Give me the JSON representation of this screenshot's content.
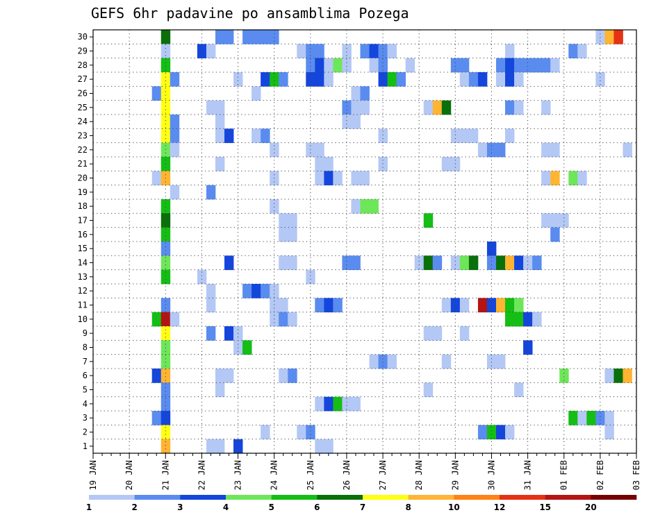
{
  "chart_data": {
    "type": "heatmap",
    "title": "GEFS 6hr padavine po ansamblima Pozega",
    "xlabel": "",
    "ylabel": "",
    "x_start": "19 JAN 00Z",
    "step_hours": 6,
    "x_ticks": [
      "19 JAN",
      "20 JAN",
      "21 JAN",
      "22 JAN",
      "23 JAN",
      "24 JAN",
      "25 JAN",
      "26 JAN",
      "27 JAN",
      "28 JAN",
      "29 JAN",
      "30 JAN",
      "31 JAN",
      "01 FEB",
      "02 FEB",
      "03 FEB"
    ],
    "y_ticks": [
      1,
      2,
      3,
      4,
      5,
      6,
      7,
      8,
      9,
      10,
      11,
      12,
      13,
      14,
      15,
      16,
      17,
      18,
      19,
      20,
      21,
      22,
      23,
      24,
      25,
      26,
      27,
      28,
      29,
      30
    ],
    "ylim": [
      0,
      30
    ],
    "grid": true,
    "colorbar": {
      "labels": [
        "1",
        "2",
        "3",
        "4",
        "5",
        "6",
        "7",
        "8",
        "10",
        "12",
        "15",
        "20"
      ],
      "colors": [
        "#b4c8f5",
        "#5a8cf0",
        "#1446dc",
        "#6ee65a",
        "#14be14",
        "#0a700a",
        "#ffff14",
        "#ffb432",
        "#ff8214",
        "#e63214",
        "#b41414",
        "#780000"
      ]
    },
    "cells": [
      {
        "m": 30,
        "c": [
          [
            8,
            6
          ],
          [
            14,
            2
          ],
          [
            15,
            2
          ],
          [
            17,
            2
          ],
          [
            18,
            2
          ],
          [
            19,
            2
          ],
          [
            20,
            2
          ],
          [
            56,
            1
          ],
          [
            57,
            8
          ],
          [
            58,
            10
          ]
        ]
      },
      {
        "m": 29,
        "c": [
          [
            8,
            1
          ],
          [
            12,
            3
          ],
          [
            13,
            1
          ],
          [
            23,
            1
          ],
          [
            24,
            2
          ],
          [
            25,
            2
          ],
          [
            28,
            1
          ],
          [
            30,
            2
          ],
          [
            31,
            3
          ],
          [
            32,
            2
          ],
          [
            33,
            1
          ],
          [
            46,
            1
          ],
          [
            53,
            2
          ],
          [
            54,
            1
          ]
        ]
      },
      {
        "m": 28,
        "c": [
          [
            8,
            5
          ],
          [
            24,
            2
          ],
          [
            25,
            3
          ],
          [
            26,
            1
          ],
          [
            27,
            4
          ],
          [
            28,
            1
          ],
          [
            31,
            1
          ],
          [
            32,
            2
          ],
          [
            35,
            1
          ],
          [
            40,
            2
          ],
          [
            41,
            2
          ],
          [
            45,
            2
          ],
          [
            46,
            3
          ],
          [
            47,
            2
          ],
          [
            48,
            2
          ],
          [
            49,
            2
          ],
          [
            50,
            2
          ],
          [
            51,
            1
          ]
        ]
      },
      {
        "m": 27,
        "c": [
          [
            8,
            7
          ],
          [
            9,
            2
          ],
          [
            16,
            1
          ],
          [
            19,
            3
          ],
          [
            20,
            5
          ],
          [
            21,
            2
          ],
          [
            24,
            3
          ],
          [
            25,
            3
          ],
          [
            26,
            1
          ],
          [
            32,
            3
          ],
          [
            33,
            5
          ],
          [
            34,
            2
          ],
          [
            41,
            1
          ],
          [
            42,
            2
          ],
          [
            43,
            3
          ],
          [
            45,
            1
          ],
          [
            46,
            3
          ],
          [
            47,
            1
          ],
          [
            56,
            1
          ]
        ]
      },
      {
        "m": 26,
        "c": [
          [
            7,
            2
          ],
          [
            8,
            7
          ],
          [
            18,
            1
          ],
          [
            29,
            1
          ],
          [
            30,
            2
          ]
        ]
      },
      {
        "m": 25,
        "c": [
          [
            8,
            7
          ],
          [
            13,
            1
          ],
          [
            14,
            1
          ],
          [
            28,
            2
          ],
          [
            29,
            1
          ],
          [
            30,
            1
          ],
          [
            37,
            1
          ],
          [
            38,
            8
          ],
          [
            39,
            6
          ],
          [
            46,
            2
          ],
          [
            47,
            1
          ],
          [
            50,
            1
          ]
        ]
      },
      {
        "m": 24,
        "c": [
          [
            8,
            7
          ],
          [
            9,
            2
          ],
          [
            14,
            1
          ],
          [
            28,
            1
          ],
          [
            29,
            1
          ]
        ]
      },
      {
        "m": 23,
        "c": [
          [
            8,
            7
          ],
          [
            9,
            2
          ],
          [
            14,
            1
          ],
          [
            15,
            3
          ],
          [
            18,
            1
          ],
          [
            19,
            2
          ],
          [
            32,
            1
          ],
          [
            40,
            1
          ],
          [
            41,
            1
          ],
          [
            42,
            1
          ],
          [
            46,
            1
          ]
        ]
      },
      {
        "m": 22,
        "c": [
          [
            8,
            4
          ],
          [
            9,
            1
          ],
          [
            20,
            1
          ],
          [
            24,
            1
          ],
          [
            25,
            1
          ],
          [
            43,
            1
          ],
          [
            44,
            2
          ],
          [
            45,
            2
          ],
          [
            50,
            1
          ],
          [
            51,
            1
          ],
          [
            59,
            1
          ]
        ]
      },
      {
        "m": 21,
        "c": [
          [
            8,
            5
          ],
          [
            14,
            1
          ],
          [
            25,
            1
          ],
          [
            26,
            1
          ],
          [
            32,
            1
          ],
          [
            39,
            1
          ],
          [
            40,
            1
          ]
        ]
      },
      {
        "m": 20,
        "c": [
          [
            7,
            1
          ],
          [
            8,
            8
          ],
          [
            20,
            1
          ],
          [
            25,
            1
          ],
          [
            26,
            3
          ],
          [
            27,
            1
          ],
          [
            29,
            1
          ],
          [
            30,
            1
          ],
          [
            50,
            1
          ],
          [
            51,
            8
          ],
          [
            53,
            4
          ],
          [
            54,
            1
          ]
        ]
      },
      {
        "m": 19,
        "c": [
          [
            9,
            1
          ],
          [
            13,
            2
          ]
        ]
      },
      {
        "m": 18,
        "c": [
          [
            8,
            5
          ],
          [
            20,
            1
          ],
          [
            29,
            1
          ],
          [
            30,
            4
          ],
          [
            31,
            4
          ]
        ]
      },
      {
        "m": 17,
        "c": [
          [
            8,
            6
          ],
          [
            21,
            1
          ],
          [
            22,
            1
          ],
          [
            37,
            5
          ],
          [
            50,
            1
          ],
          [
            51,
            1
          ],
          [
            52,
            1
          ]
        ]
      },
      {
        "m": 16,
        "c": [
          [
            8,
            5
          ],
          [
            21,
            1
          ],
          [
            22,
            1
          ],
          [
            51,
            2
          ]
        ]
      },
      {
        "m": 15,
        "c": [
          [
            8,
            2
          ],
          [
            44,
            3
          ]
        ]
      },
      {
        "m": 14,
        "c": [
          [
            8,
            4
          ],
          [
            15,
            3
          ],
          [
            21,
            1
          ],
          [
            22,
            1
          ],
          [
            28,
            2
          ],
          [
            29,
            2
          ],
          [
            36,
            1
          ],
          [
            37,
            6
          ],
          [
            38,
            2
          ],
          [
            40,
            1
          ],
          [
            41,
            4
          ],
          [
            42,
            6
          ],
          [
            44,
            2
          ],
          [
            45,
            6
          ],
          [
            46,
            8
          ],
          [
            47,
            3
          ],
          [
            48,
            1
          ],
          [
            49,
            2
          ]
        ]
      },
      {
        "m": 13,
        "c": [
          [
            8,
            5
          ],
          [
            12,
            1
          ],
          [
            24,
            1
          ]
        ]
      },
      {
        "m": 12,
        "c": [
          [
            13,
            1
          ],
          [
            17,
            2
          ],
          [
            18,
            3
          ],
          [
            19,
            2
          ],
          [
            20,
            1
          ]
        ]
      },
      {
        "m": 11,
        "c": [
          [
            8,
            2
          ],
          [
            13,
            1
          ],
          [
            20,
            1
          ],
          [
            21,
            1
          ],
          [
            25,
            2
          ],
          [
            26,
            3
          ],
          [
            27,
            2
          ],
          [
            39,
            1
          ],
          [
            40,
            3
          ],
          [
            41,
            1
          ],
          [
            43,
            11
          ],
          [
            44,
            3
          ],
          [
            45,
            8
          ],
          [
            46,
            5
          ],
          [
            47,
            4
          ]
        ]
      },
      {
        "m": 10,
        "c": [
          [
            7,
            5
          ],
          [
            8,
            11
          ],
          [
            9,
            1
          ],
          [
            20,
            1
          ],
          [
            21,
            2
          ],
          [
            22,
            1
          ],
          [
            46,
            5
          ],
          [
            47,
            5
          ],
          [
            48,
            3
          ],
          [
            49,
            1
          ]
        ]
      },
      {
        "m": 9,
        "c": [
          [
            8,
            7
          ],
          [
            13,
            2
          ],
          [
            15,
            3
          ],
          [
            16,
            1
          ],
          [
            37,
            1
          ],
          [
            38,
            1
          ],
          [
            41,
            1
          ]
        ]
      },
      {
        "m": 8,
        "c": [
          [
            8,
            4
          ],
          [
            16,
            1
          ],
          [
            17,
            5
          ],
          [
            48,
            3
          ]
        ]
      },
      {
        "m": 7,
        "c": [
          [
            8,
            4
          ],
          [
            31,
            1
          ],
          [
            32,
            2
          ],
          [
            33,
            1
          ],
          [
            39,
            1
          ],
          [
            44,
            1
          ],
          [
            45,
            1
          ]
        ]
      },
      {
        "m": 6,
        "c": [
          [
            7,
            3
          ],
          [
            8,
            8
          ],
          [
            14,
            1
          ],
          [
            15,
            1
          ],
          [
            21,
            1
          ],
          [
            22,
            2
          ],
          [
            52,
            4
          ],
          [
            57,
            1
          ],
          [
            58,
            6
          ],
          [
            59,
            8
          ]
        ]
      },
      {
        "m": 5,
        "c": [
          [
            8,
            2
          ],
          [
            14,
            1
          ],
          [
            37,
            1
          ],
          [
            47,
            1
          ]
        ]
      },
      {
        "m": 4,
        "c": [
          [
            8,
            2
          ],
          [
            25,
            1
          ],
          [
            26,
            3
          ],
          [
            27,
            5
          ],
          [
            28,
            1
          ],
          [
            29,
            1
          ]
        ]
      },
      {
        "m": 3,
        "c": [
          [
            7,
            2
          ],
          [
            8,
            3
          ],
          [
            53,
            5
          ],
          [
            54,
            1
          ],
          [
            55,
            5
          ],
          [
            56,
            2
          ],
          [
            57,
            1
          ]
        ]
      },
      {
        "m": 2,
        "c": [
          [
            8,
            7
          ],
          [
            19,
            1
          ],
          [
            23,
            1
          ],
          [
            24,
            2
          ],
          [
            43,
            2
          ],
          [
            44,
            5
          ],
          [
            45,
            3
          ],
          [
            46,
            1
          ],
          [
            57,
            1
          ]
        ]
      },
      {
        "m": 1,
        "c": [
          [
            8,
            8
          ],
          [
            13,
            1
          ],
          [
            14,
            1
          ],
          [
            16,
            3
          ],
          [
            25,
            1
          ],
          [
            26,
            1
          ]
        ]
      }
    ]
  }
}
